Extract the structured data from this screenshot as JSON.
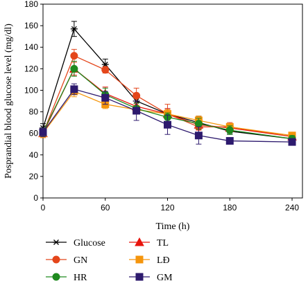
{
  "chart_data": {
    "type": "line",
    "title": "",
    "xlabel": "Time (h)",
    "ylabel": "Posprandial blood glucose level (mg/dl)",
    "xlim": [
      0,
      250
    ],
    "ylim": [
      0,
      180
    ],
    "x_ticks": [
      0,
      60,
      120,
      180,
      240
    ],
    "y_ticks": [
      0,
      20,
      40,
      60,
      80,
      100,
      120,
      140,
      160,
      180
    ],
    "grid": false,
    "legend_position": "bottom",
    "x": [
      0,
      30,
      60,
      90,
      120,
      150,
      180,
      240
    ],
    "series": [
      {
        "name": "Glucose",
        "color": "#000000",
        "marker": "asterisk",
        "values": [
          65,
          157,
          124,
          90,
          78,
          70,
          62,
          55
        ],
        "errors": [
          4,
          7,
          5,
          4,
          5,
          6,
          3,
          3
        ]
      },
      {
        "name": "TL",
        "color": "#e8140c",
        "marker": "triangle",
        "values": [
          60,
          120,
          97,
          85,
          78,
          68,
          65,
          57
        ],
        "errors": [
          4,
          6,
          6,
          5,
          5,
          5,
          4,
          3
        ]
      },
      {
        "name": "GN",
        "color": "#e4461b",
        "marker": "circle",
        "values": [
          60,
          132,
          119,
          95,
          78,
          66,
          66,
          57
        ],
        "errors": [
          4,
          6,
          3,
          7,
          9,
          6,
          4,
          3
        ]
      },
      {
        "name": "LĐ",
        "color": "#f5950c",
        "marker": "square",
        "values": [
          60,
          99,
          87,
          82,
          78,
          72,
          66,
          58
        ],
        "errors": [
          4,
          5,
          4,
          4,
          4,
          4,
          3,
          3
        ]
      },
      {
        "name": "HR",
        "color": "#1f8a1f",
        "marker": "circle",
        "values": [
          61,
          120,
          96,
          83,
          75,
          69,
          63,
          55
        ],
        "errors": [
          4,
          7,
          6,
          5,
          4,
          5,
          4,
          3
        ]
      },
      {
        "name": "GM",
        "color": "#2d1a6e",
        "marker": "square",
        "values": [
          61,
          101,
          93,
          81,
          68,
          58,
          53,
          52
        ],
        "errors": [
          4,
          5,
          6,
          9,
          9,
          8,
          3,
          3
        ]
      }
    ]
  }
}
